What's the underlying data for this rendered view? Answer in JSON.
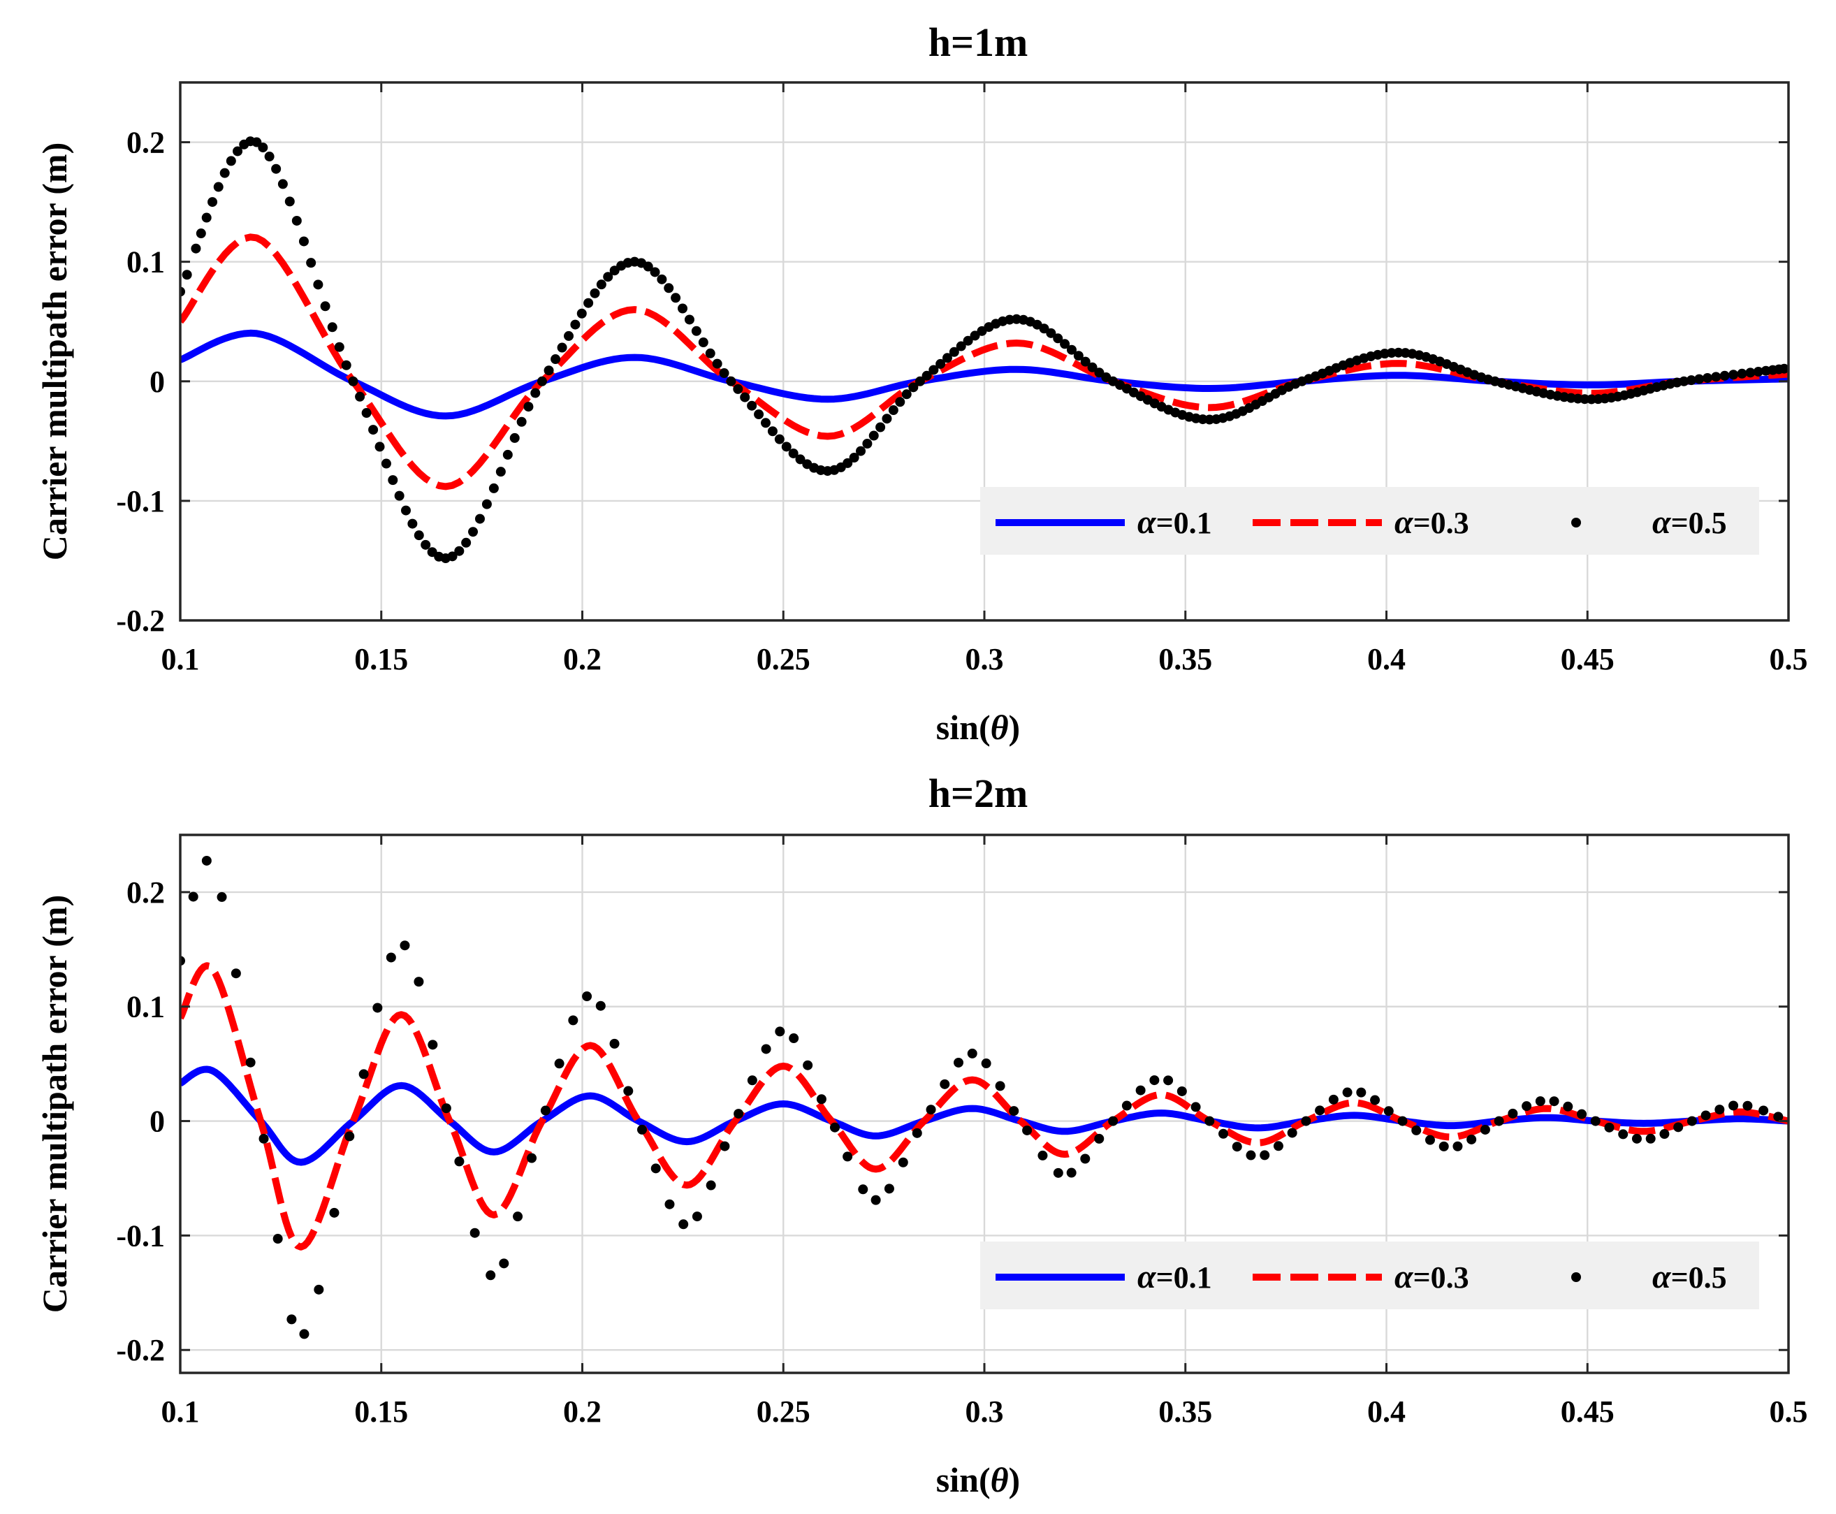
{
  "chart_data": [
    {
      "type": "line",
      "title": "h=1m",
      "xlabel": "sin(θ)",
      "xlabel_prefix": "sin(",
      "xlabel_symbol": "θ",
      "xlabel_suffix": ")",
      "ylabel": "Carrier multipath error (m)",
      "xlim": [
        0.1,
        0.5
      ],
      "ylim": [
        -0.2,
        0.25
      ],
      "xticks": [
        0.1,
        0.15,
        0.2,
        0.25,
        0.3,
        0.35,
        0.4,
        0.45,
        0.5
      ],
      "xtick_labels": [
        "0.1",
        "0.15",
        "0.2",
        "0.25",
        "0.3",
        "0.35",
        "0.4",
        "0.45",
        "0.5"
      ],
      "yticks": [
        -0.2,
        -0.1,
        0,
        0.1,
        0.2
      ],
      "ytick_labels": [
        "-0.2",
        "-0.1",
        "0",
        "0.1",
        "0.2"
      ],
      "grid": true,
      "legend": "bottom-right, horizontal",
      "x": [
        0.1,
        0.119,
        0.143,
        0.166,
        0.19,
        0.213,
        0.237,
        0.261,
        0.284,
        0.308,
        0.332,
        0.356,
        0.379,
        0.403,
        0.427,
        0.451,
        0.474,
        0.5
      ],
      "series": [
        {
          "name": "α=0.1",
          "symbol": "α",
          "label": "=0.1",
          "style": "solid",
          "color": "#0000ff",
          "values": [
            0.018,
            0.04,
            0.0,
            -0.029,
            0.0,
            0.02,
            0.0,
            -0.015,
            0.0,
            0.01,
            0.0,
            -0.006,
            0.0,
            0.005,
            0.0,
            -0.003,
            0.0,
            0.002
          ]
        },
        {
          "name": "α=0.3",
          "symbol": "α",
          "label": "=0.3",
          "style": "dashed",
          "color": "#ff0000",
          "values": [
            0.05,
            0.12,
            0.0,
            -0.088,
            0.0,
            0.06,
            0.0,
            -0.046,
            0.0,
            0.032,
            0.0,
            -0.022,
            0.0,
            0.015,
            0.0,
            -0.01,
            0.0,
            0.006
          ]
        },
        {
          "name": "α=0.5",
          "symbol": "α",
          "label": "=0.5",
          "style": "dotted",
          "color": "#000000",
          "values": [
            0.075,
            0.2,
            0.0,
            -0.148,
            0.0,
            0.1,
            0.0,
            -0.075,
            0.0,
            0.052,
            0.0,
            -0.032,
            0.0,
            0.024,
            0.0,
            -0.015,
            0.0,
            0.011
          ]
        }
      ]
    },
    {
      "type": "line",
      "title": "h=2m",
      "xlabel": "sin(θ)",
      "xlabel_prefix": "sin(",
      "xlabel_symbol": "θ",
      "xlabel_suffix": ")",
      "ylabel": "Carrier multipath error (m)",
      "xlim": [
        0.1,
        0.5
      ],
      "ylim": [
        -0.22,
        0.25
      ],
      "xticks": [
        0.1,
        0.15,
        0.2,
        0.25,
        0.3,
        0.35,
        0.4,
        0.45,
        0.5
      ],
      "xtick_labels": [
        "0.1",
        "0.15",
        "0.2",
        "0.25",
        "0.3",
        "0.35",
        "0.4",
        "0.45",
        "0.5"
      ],
      "yticks": [
        -0.2,
        -0.1,
        0,
        0.1,
        0.2
      ],
      "ytick_labels": [
        "-0.2",
        "-0.1",
        "0",
        "0.1",
        "0.2"
      ],
      "grid": true,
      "legend": "bottom-right, horizontal",
      "x": [
        0.1,
        0.108,
        0.12,
        0.13,
        0.143,
        0.155,
        0.167,
        0.178,
        0.19,
        0.202,
        0.214,
        0.226,
        0.238,
        0.25,
        0.262,
        0.273,
        0.285,
        0.297,
        0.309,
        0.32,
        0.332,
        0.344,
        0.356,
        0.368,
        0.38,
        0.392,
        0.404,
        0.416,
        0.428,
        0.44,
        0.452,
        0.464,
        0.476,
        0.488,
        0.5
      ],
      "series": [
        {
          "name": "α=0.1",
          "symbol": "α",
          "label": "=0.1",
          "style": "solid",
          "color": "#0000ff",
          "values": [
            0.033,
            0.044,
            0.0,
            -0.036,
            0.0,
            0.031,
            0.0,
            -0.027,
            0.0,
            0.022,
            0.0,
            -0.018,
            0.0,
            0.015,
            0.0,
            -0.013,
            0.0,
            0.011,
            0.0,
            -0.009,
            0.0,
            0.007,
            0.0,
            -0.006,
            0.0,
            0.005,
            0.0,
            -0.004,
            0.0,
            0.003,
            0.0,
            -0.002,
            0.0,
            0.002,
            0.0
          ]
        },
        {
          "name": "α=0.3",
          "symbol": "α",
          "label": "=0.3",
          "style": "dashed",
          "color": "#ff0000",
          "values": [
            0.09,
            0.133,
            0.0,
            -0.11,
            0.0,
            0.093,
            0.0,
            -0.082,
            0.0,
            0.066,
            0.0,
            -0.056,
            0.0,
            0.048,
            0.0,
            -0.042,
            0.0,
            0.036,
            0.0,
            -0.029,
            0.0,
            0.023,
            0.0,
            -0.019,
            0.0,
            0.016,
            0.0,
            -0.014,
            0.0,
            0.011,
            0.0,
            -0.009,
            0.0,
            0.008,
            0.0
          ]
        },
        {
          "name": "α=0.5",
          "symbol": "α",
          "label": "=0.5",
          "style": "dotted",
          "color": "#000000",
          "values": [
            0.14,
            0.224,
            0.0,
            -0.188,
            0.0,
            0.155,
            0.0,
            -0.136,
            0.0,
            0.11,
            0.0,
            -0.091,
            0.0,
            0.079,
            0.0,
            -0.069,
            0.0,
            0.059,
            0.0,
            -0.047,
            0.0,
            0.037,
            0.0,
            -0.031,
            0.0,
            0.026,
            0.0,
            -0.023,
            0.0,
            0.018,
            0.0,
            -0.016,
            0.0,
            0.014,
            0.0
          ]
        }
      ]
    }
  ]
}
